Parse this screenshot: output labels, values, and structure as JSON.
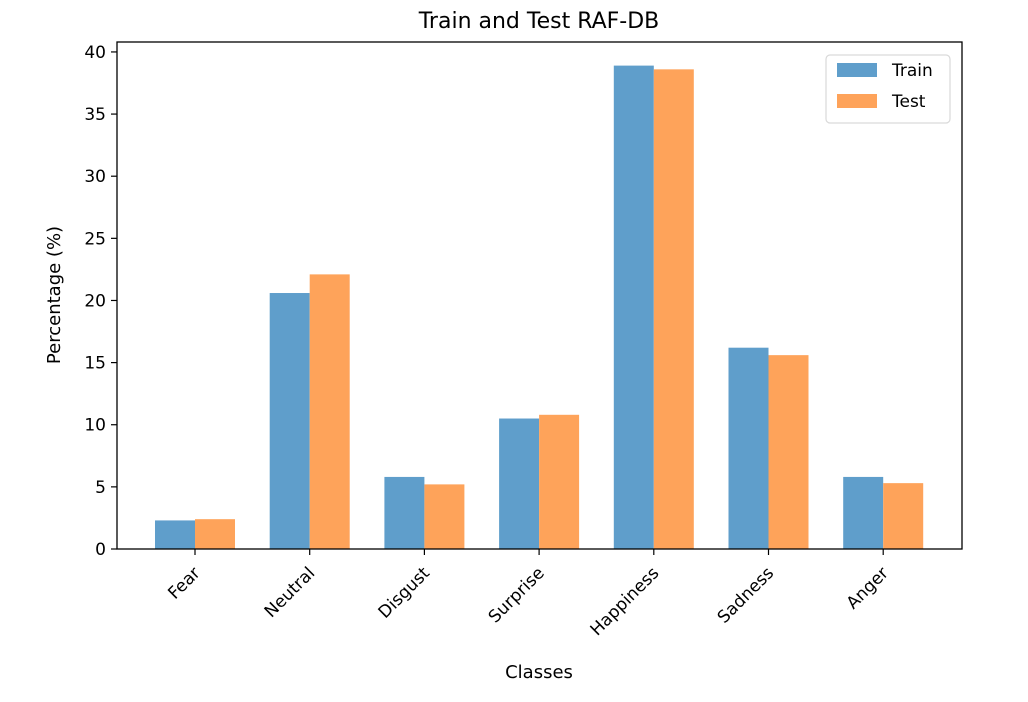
{
  "chart_data": {
    "type": "bar",
    "title": "Train and Test RAF-DB",
    "xlabel": "Classes",
    "ylabel": "Percentage (%)",
    "categories": [
      "Fear",
      "Neutral",
      "Disgust",
      "Surprise",
      "Happiness",
      "Sadness",
      "Anger"
    ],
    "series": [
      {
        "name": "Train",
        "color": "#5f9ecb",
        "values": [
          2.3,
          20.6,
          5.8,
          10.5,
          38.9,
          16.2,
          5.8
        ]
      },
      {
        "name": "Test",
        "color": "#fea35a",
        "values": [
          2.4,
          22.1,
          5.2,
          10.8,
          38.6,
          15.6,
          5.3
        ]
      }
    ],
    "ylim": [
      0,
      40.8
    ],
    "yticks": [
      0,
      5,
      10,
      15,
      20,
      25,
      30,
      35,
      40
    ],
    "grid": false,
    "legend": "top-right"
  }
}
